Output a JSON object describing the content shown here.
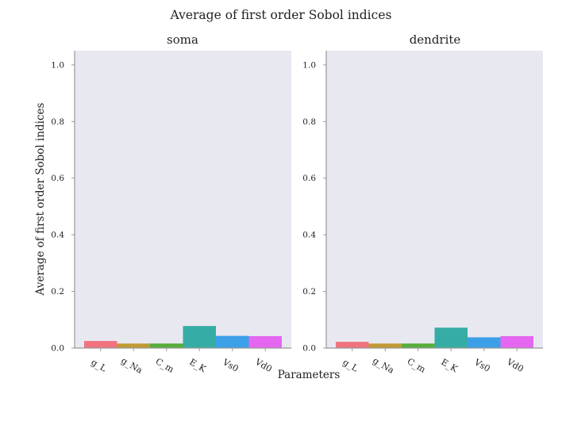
{
  "figure": {
    "title": "Average of first order Sobol indices",
    "xlabel": "Parameters",
    "ylabel": "Average of first order Sobol indices"
  },
  "colors": {
    "plot_background": "#e8e8f1",
    "axis_line": "#999999",
    "bars": [
      "#f0737f",
      "#c09a34",
      "#55ae3a",
      "#36ada4",
      "#3ca0e8",
      "#e566f0"
    ]
  },
  "chart_data": [
    {
      "type": "bar",
      "title": "soma",
      "categories": [
        "g_L",
        "g_Na",
        "C_m",
        "E_K",
        "Vs0",
        "Vd0"
      ],
      "values": [
        0.025,
        0.016,
        0.016,
        0.078,
        0.043,
        0.042
      ],
      "ylim": [
        0,
        1.05
      ],
      "yticks": [
        "0.0",
        "0.2",
        "0.4",
        "0.6",
        "0.8",
        "1.0"
      ],
      "grid": false
    },
    {
      "type": "bar",
      "title": "dendrite",
      "categories": [
        "g_L",
        "g_Na",
        "C_m",
        "E_K",
        "Vs0",
        "Vd0"
      ],
      "values": [
        0.022,
        0.016,
        0.016,
        0.072,
        0.038,
        0.042
      ],
      "ylim": [
        0,
        1.05
      ],
      "yticks": [
        "0.0",
        "0.2",
        "0.4",
        "0.6",
        "0.8",
        "1.0"
      ],
      "grid": false
    }
  ]
}
